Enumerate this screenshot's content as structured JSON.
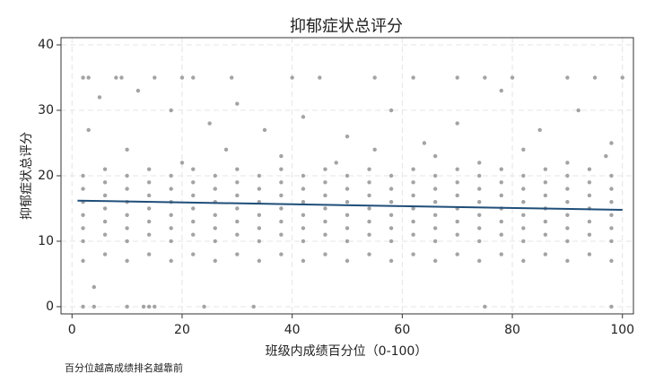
{
  "chart_data": {
    "type": "scatter",
    "title": "抑郁症状总评分",
    "x_label": "班级内成绩百分位（0-100）",
    "y_label": "抑郁症状总评分",
    "note": "百分位越高成绩排名越靠前",
    "xlim": [
      -2,
      102
    ],
    "ylim": [
      -1.1,
      41.1
    ],
    "xticks": [
      0,
      20,
      40,
      60,
      80,
      100
    ],
    "yticks": [
      0,
      10,
      20,
      30,
      40
    ],
    "grid": true,
    "series": [
      {
        "color": "#a3a3a3",
        "x": [
          2,
          2,
          2,
          2,
          2,
          2,
          2,
          10,
          10,
          10,
          10,
          10,
          10,
          10,
          18,
          18,
          18,
          18,
          18,
          18,
          18,
          26,
          26,
          26,
          26,
          26,
          26,
          26,
          34,
          34,
          34,
          34,
          34,
          34,
          34,
          42,
          42,
          42,
          42,
          42,
          42,
          42,
          50,
          50,
          50,
          50,
          50,
          50,
          50,
          58,
          58,
          58,
          58,
          58,
          58,
          58,
          66,
          66,
          66,
          66,
          66,
          66,
          66,
          74,
          74,
          74,
          74,
          74,
          74,
          74,
          82,
          82,
          82,
          82,
          82,
          82,
          82,
          90,
          90,
          90,
          90,
          90,
          90,
          90,
          98,
          98,
          98,
          98,
          98,
          98,
          98,
          6,
          6,
          6,
          6,
          6,
          6,
          6,
          14,
          14,
          14,
          14,
          14,
          14,
          14,
          22,
          22,
          22,
          22,
          22,
          22,
          22,
          30,
          30,
          30,
          30,
          30,
          30,
          30,
          38,
          38,
          38,
          38,
          38,
          38,
          38,
          46,
          46,
          46,
          46,
          46,
          46,
          46,
          54,
          54,
          54,
          54,
          54,
          54,
          54,
          62,
          62,
          62,
          62,
          62,
          62,
          62,
          70,
          70,
          70,
          70,
          70,
          70,
          70,
          78,
          78,
          78,
          78,
          78,
          78,
          78,
          86,
          86,
          86,
          86,
          86,
          86,
          86,
          94,
          94,
          94,
          94,
          94,
          94,
          94,
          2,
          4,
          10,
          13,
          14,
          15,
          24,
          33,
          75,
          98,
          4,
          2,
          3,
          8,
          9,
          15,
          20,
          22,
          29,
          40,
          45,
          55,
          62,
          70,
          75,
          80,
          90,
          95,
          100,
          5,
          12,
          18,
          25,
          30,
          35,
          42,
          50,
          58,
          64,
          70,
          78,
          85,
          92,
          98,
          3,
          10,
          20,
          28,
          38,
          48,
          55,
          66,
          74,
          82,
          90,
          97
        ],
        "values": [
          7,
          10,
          12,
          14,
          16,
          18,
          20,
          7,
          10,
          12,
          14,
          16,
          18,
          20,
          7,
          10,
          12,
          14,
          16,
          18,
          20,
          7,
          10,
          12,
          14,
          16,
          18,
          20,
          7,
          10,
          12,
          14,
          16,
          18,
          20,
          7,
          10,
          12,
          14,
          16,
          18,
          20,
          7,
          10,
          12,
          14,
          16,
          18,
          20,
          7,
          10,
          12,
          14,
          16,
          18,
          20,
          7,
          10,
          12,
          14,
          16,
          18,
          20,
          7,
          10,
          12,
          14,
          16,
          18,
          20,
          7,
          10,
          12,
          14,
          16,
          18,
          20,
          7,
          10,
          12,
          14,
          16,
          18,
          20,
          7,
          10,
          12,
          14,
          16,
          18,
          20,
          8,
          11,
          13,
          15,
          17,
          19,
          21,
          8,
          11,
          13,
          15,
          17,
          19,
          21,
          8,
          11,
          13,
          15,
          17,
          19,
          21,
          8,
          11,
          13,
          15,
          17,
          19,
          21,
          8,
          11,
          13,
          15,
          17,
          19,
          21,
          8,
          11,
          13,
          15,
          17,
          19,
          21,
          8,
          11,
          13,
          15,
          17,
          19,
          21,
          8,
          11,
          13,
          15,
          17,
          19,
          21,
          8,
          11,
          13,
          15,
          17,
          19,
          21,
          8,
          11,
          13,
          15,
          17,
          19,
          21,
          8,
          11,
          13,
          15,
          17,
          19,
          21,
          8,
          11,
          13,
          15,
          17,
          19,
          21,
          0,
          0,
          0,
          0,
          0,
          0,
          0,
          0,
          0,
          0,
          3,
          35,
          35,
          35,
          35,
          35,
          35,
          35,
          35,
          35,
          35,
          35,
          35,
          35,
          35,
          35,
          35,
          35,
          35,
          32,
          33,
          30,
          28,
          31,
          27,
          29,
          26,
          30,
          25,
          28,
          33,
          27,
          30,
          25,
          27,
          24,
          22,
          24,
          23,
          22,
          24,
          23,
          22,
          24,
          22,
          23
        ]
      },
      {
        "type": "line",
        "color": "#1f4e79",
        "x": [
          1,
          100
        ],
        "values": [
          16.2,
          14.8
        ]
      }
    ]
  }
}
